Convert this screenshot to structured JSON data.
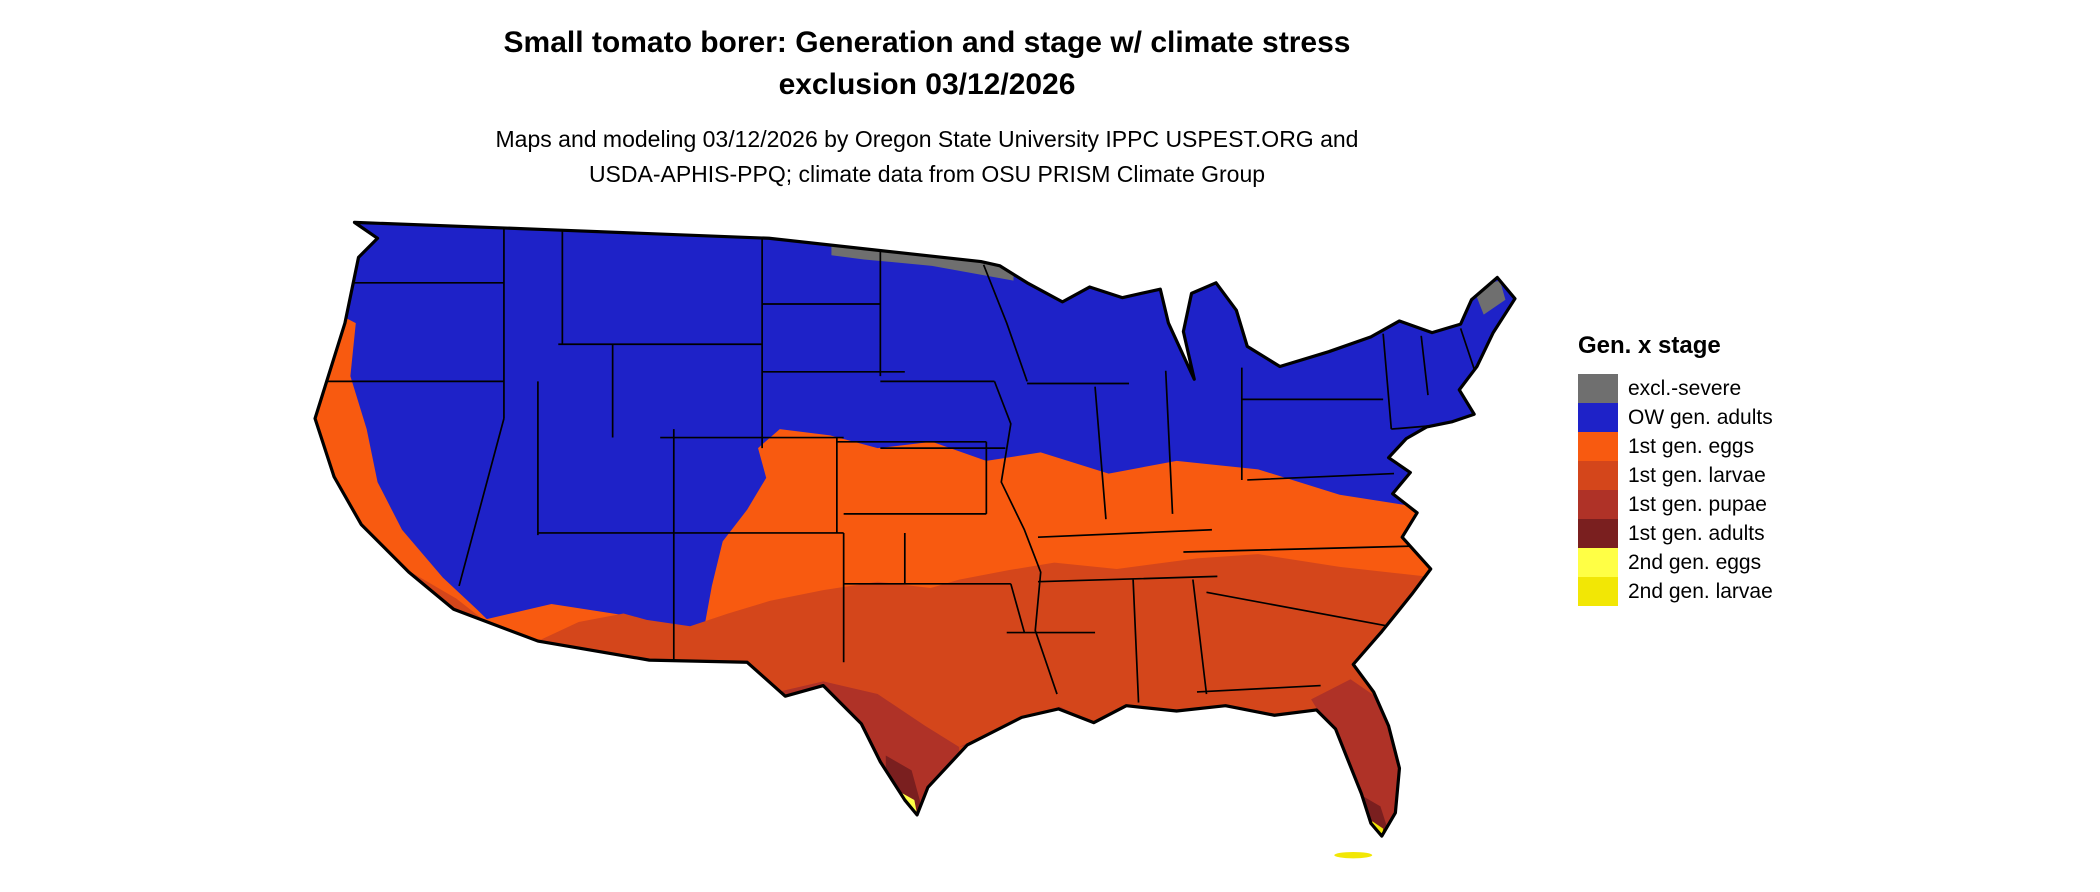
{
  "header": {
    "title_line1": "Small tomato borer: Generation and stage w/ climate stress",
    "title_line2": "exclusion 03/12/2026",
    "subtitle_line1": "Maps and modeling 03/12/2026 by Oregon State University IPPC USPEST.ORG and",
    "subtitle_line2": "USDA-APHIS-PPQ; climate data from OSU PRISM Climate Group"
  },
  "legend": {
    "title": "Gen. x stage",
    "items": [
      {
        "label": "excl.-severe",
        "color": "#6F6F6F"
      },
      {
        "label": "OW gen. adults",
        "color": "#1E22C8"
      },
      {
        "label": "1st gen. eggs",
        "color": "#F85A10"
      },
      {
        "label": "1st gen. larvae",
        "color": "#D4461B"
      },
      {
        "label": "1st gen. pupae",
        "color": "#AF3227"
      },
      {
        "label": "1st gen. adults",
        "color": "#7A1F1F"
      },
      {
        "label": "2nd gen. eggs",
        "color": "#FFFF45"
      },
      {
        "label": "2nd gen. larvae",
        "color": "#F2E705"
      }
    ]
  }
}
